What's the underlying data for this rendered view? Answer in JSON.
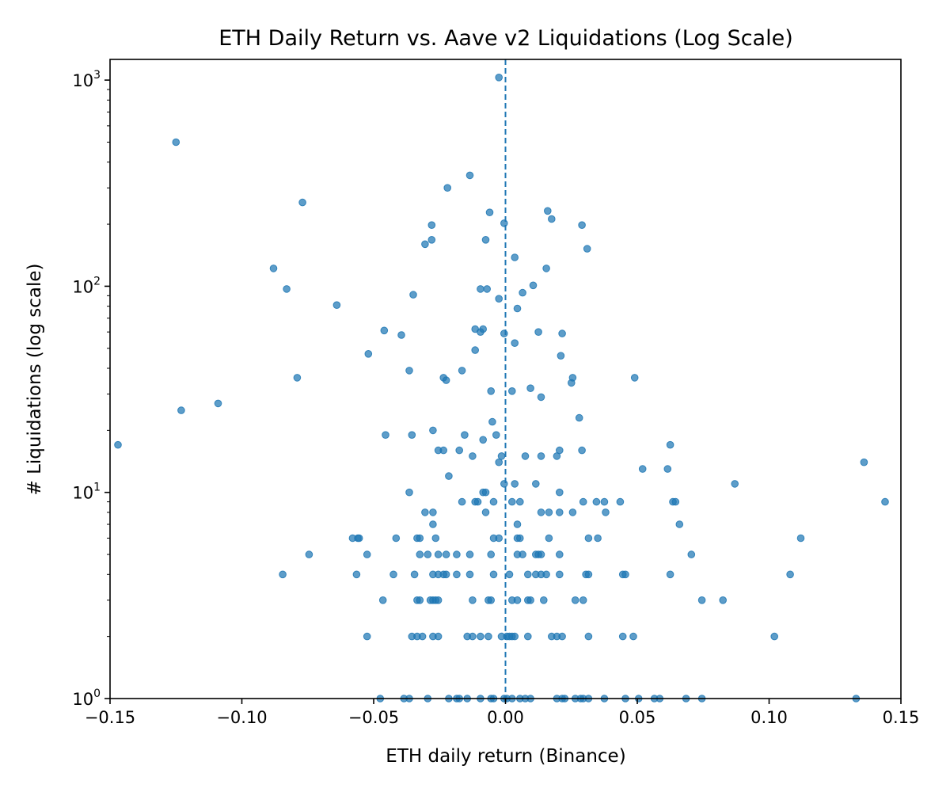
{
  "chart_data": {
    "type": "scatter",
    "title": "ETH Daily Return vs. Aave v2 Liquidations (Log Scale)",
    "xlabel": "ETH daily return (Binance)",
    "ylabel": "# Liquidations (log scale)",
    "xlim": [
      -0.15,
      0.15
    ],
    "ylim": [
      1,
      1260
    ],
    "y_scale": "log",
    "x_ticks": [
      "−0.15",
      "−0.10",
      "−0.05",
      "0.00",
      "0.05",
      "0.10",
      "0.15"
    ],
    "x_tick_values": [
      -0.15,
      -0.1,
      -0.05,
      0.0,
      0.05,
      0.1,
      0.15
    ],
    "y_ticks": [
      {
        "base": "10",
        "exp": "0",
        "value": 1
      },
      {
        "base": "10",
        "exp": "1",
        "value": 10
      },
      {
        "base": "10",
        "exp": "2",
        "value": 100
      },
      {
        "base": "10",
        "exp": "3",
        "value": 1000
      }
    ],
    "reference_line": {
      "x": 0.0,
      "style": "dashed",
      "color": "#1f77b4"
    },
    "color": "#1f77b4",
    "grid": false,
    "points": [
      [
        -0.0025,
        1030
      ],
      [
        -0.125,
        500
      ],
      [
        -0.077,
        255
      ],
      [
        -0.0135,
        345
      ],
      [
        -0.022,
        300
      ],
      [
        -0.006,
        228
      ],
      [
        -0.0005,
        202
      ],
      [
        -0.028,
        198
      ],
      [
        0.016,
        232
      ],
      [
        0.0175,
        212
      ],
      [
        0.029,
        198
      ],
      [
        -0.028,
        168
      ],
      [
        -0.0075,
        168
      ],
      [
        -0.0305,
        160
      ],
      [
        0.031,
        152
      ],
      [
        0.0035,
        138
      ],
      [
        0.0155,
        122
      ],
      [
        -0.088,
        122
      ],
      [
        -0.083,
        97
      ],
      [
        -0.0095,
        97
      ],
      [
        -0.007,
        97
      ],
      [
        0.0105,
        101
      ],
      [
        -0.035,
        91
      ],
      [
        0.0065,
        93
      ],
      [
        -0.0025,
        87
      ],
      [
        -0.064,
        81
      ],
      [
        0.0045,
        78
      ],
      [
        -0.0115,
        62
      ],
      [
        -0.0085,
        62
      ],
      [
        -0.046,
        61
      ],
      [
        -0.0095,
        60
      ],
      [
        -0.0005,
        59
      ],
      [
        0.0125,
        60
      ],
      [
        0.0215,
        59
      ],
      [
        -0.0395,
        58
      ],
      [
        0.0035,
        53
      ],
      [
        -0.0115,
        49
      ],
      [
        -0.052,
        47
      ],
      [
        0.021,
        46
      ],
      [
        -0.0365,
        39
      ],
      [
        -0.0165,
        39
      ],
      [
        -0.079,
        36
      ],
      [
        -0.0235,
        36
      ],
      [
        -0.0225,
        35
      ],
      [
        0.0255,
        36
      ],
      [
        0.049,
        36
      ],
      [
        0.025,
        34
      ],
      [
        0.0095,
        32
      ],
      [
        -0.0055,
        31
      ],
      [
        0.0025,
        31
      ],
      [
        0.0135,
        29
      ],
      [
        -0.123,
        25
      ],
      [
        -0.109,
        27
      ],
      [
        0.028,
        23
      ],
      [
        -0.005,
        22
      ],
      [
        -0.147,
        17
      ],
      [
        -0.0455,
        19
      ],
      [
        -0.0355,
        19
      ],
      [
        -0.0275,
        20
      ],
      [
        -0.0155,
        19
      ],
      [
        -0.0035,
        19
      ],
      [
        -0.0085,
        18
      ],
      [
        -0.0255,
        16
      ],
      [
        -0.0235,
        16
      ],
      [
        -0.0175,
        16
      ],
      [
        -0.0125,
        15
      ],
      [
        -0.0025,
        14
      ],
      [
        -0.0015,
        15
      ],
      [
        0.0075,
        15
      ],
      [
        0.0135,
        15
      ],
      [
        0.0205,
        16
      ],
      [
        0.0195,
        15
      ],
      [
        0.029,
        16
      ],
      [
        0.0625,
        17
      ],
      [
        0.136,
        14
      ],
      [
        0.052,
        13
      ],
      [
        0.0615,
        13
      ],
      [
        -0.0215,
        12
      ],
      [
        -0.0005,
        11
      ],
      [
        0.0035,
        11
      ],
      [
        0.0115,
        11
      ],
      [
        0.087,
        11
      ],
      [
        -0.0365,
        10
      ],
      [
        -0.0085,
        10
      ],
      [
        -0.0075,
        10
      ],
      [
        0.0205,
        10
      ],
      [
        -0.0165,
        9
      ],
      [
        -0.0115,
        9
      ],
      [
        -0.0105,
        9
      ],
      [
        -0.0045,
        9
      ],
      [
        0.0025,
        9
      ],
      [
        0.0055,
        9
      ],
      [
        0.0295,
        9
      ],
      [
        0.0345,
        9
      ],
      [
        0.0375,
        9
      ],
      [
        0.0435,
        9
      ],
      [
        0.0635,
        9
      ],
      [
        0.0645,
        9
      ],
      [
        0.144,
        9
      ],
      [
        -0.0305,
        8
      ],
      [
        -0.0275,
        8
      ],
      [
        -0.0075,
        8
      ],
      [
        0.0135,
        8
      ],
      [
        0.0165,
        8
      ],
      [
        0.0205,
        8
      ],
      [
        0.0255,
        8
      ],
      [
        0.038,
        8
      ],
      [
        -0.0275,
        7
      ],
      [
        0.0045,
        7
      ],
      [
        0.066,
        7
      ],
      [
        -0.058,
        6
      ],
      [
        -0.056,
        6
      ],
      [
        -0.0555,
        6
      ],
      [
        -0.0415,
        6
      ],
      [
        -0.0335,
        6
      ],
      [
        -0.0325,
        6
      ],
      [
        -0.0265,
        6
      ],
      [
        -0.0045,
        6
      ],
      [
        -0.0025,
        6
      ],
      [
        0.0045,
        6
      ],
      [
        0.0055,
        6
      ],
      [
        0.0165,
        6
      ],
      [
        0.0315,
        6
      ],
      [
        0.035,
        6
      ],
      [
        0.112,
        6
      ],
      [
        -0.0745,
        5
      ],
      [
        -0.0525,
        5
      ],
      [
        -0.0325,
        5
      ],
      [
        -0.0295,
        5
      ],
      [
        -0.0255,
        5
      ],
      [
        -0.0225,
        5
      ],
      [
        -0.0185,
        5
      ],
      [
        -0.0135,
        5
      ],
      [
        -0.0055,
        5
      ],
      [
        0.0045,
        5
      ],
      [
        0.0065,
        5
      ],
      [
        0.0115,
        5
      ],
      [
        0.0125,
        5
      ],
      [
        0.0135,
        5
      ],
      [
        0.0205,
        5
      ],
      [
        0.0705,
        5
      ],
      [
        -0.0845,
        4
      ],
      [
        -0.0565,
        4
      ],
      [
        -0.0425,
        4
      ],
      [
        -0.0345,
        4
      ],
      [
        -0.0275,
        4
      ],
      [
        -0.0255,
        4
      ],
      [
        -0.0235,
        4
      ],
      [
        -0.0225,
        4
      ],
      [
        -0.0185,
        4
      ],
      [
        -0.0135,
        4
      ],
      [
        -0.0045,
        4
      ],
      [
        0.0015,
        4
      ],
      [
        0.0085,
        4
      ],
      [
        0.0115,
        4
      ],
      [
        0.0135,
        4
      ],
      [
        0.0155,
        4
      ],
      [
        0.0205,
        4
      ],
      [
        0.0305,
        4
      ],
      [
        0.0315,
        4
      ],
      [
        0.0445,
        4
      ],
      [
        0.0455,
        4
      ],
      [
        0.0625,
        4
      ],
      [
        0.108,
        4
      ],
      [
        -0.0465,
        3
      ],
      [
        -0.0335,
        3
      ],
      [
        -0.0325,
        3
      ],
      [
        -0.0285,
        3
      ],
      [
        -0.0275,
        3
      ],
      [
        -0.0265,
        3
      ],
      [
        -0.0255,
        3
      ],
      [
        -0.0125,
        3
      ],
      [
        -0.0065,
        3
      ],
      [
        -0.0055,
        3
      ],
      [
        0.0025,
        3
      ],
      [
        0.0045,
        3
      ],
      [
        0.0085,
        3
      ],
      [
        0.0095,
        3
      ],
      [
        0.0145,
        3
      ],
      [
        0.0265,
        3
      ],
      [
        0.0295,
        3
      ],
      [
        0.0745,
        3
      ],
      [
        0.0825,
        3
      ],
      [
        -0.0525,
        2
      ],
      [
        -0.0355,
        2
      ],
      [
        -0.0335,
        2
      ],
      [
        -0.0315,
        2
      ],
      [
        -0.0275,
        2
      ],
      [
        -0.0255,
        2
      ],
      [
        -0.0145,
        2
      ],
      [
        -0.0125,
        2
      ],
      [
        -0.0095,
        2
      ],
      [
        -0.0065,
        2
      ],
      [
        -0.0015,
        2
      ],
      [
        0.0005,
        2
      ],
      [
        0.0015,
        2
      ],
      [
        0.0025,
        2
      ],
      [
        0.0035,
        2
      ],
      [
        0.0085,
        2
      ],
      [
        0.0175,
        2
      ],
      [
        0.0195,
        2
      ],
      [
        0.0215,
        2
      ],
      [
        0.0315,
        2
      ],
      [
        0.0445,
        2
      ],
      [
        0.0485,
        2
      ],
      [
        0.102,
        2
      ],
      [
        -0.0475,
        1
      ],
      [
        -0.0385,
        1
      ],
      [
        -0.0365,
        1
      ],
      [
        -0.0295,
        1
      ],
      [
        -0.0215,
        1
      ],
      [
        -0.0185,
        1
      ],
      [
        -0.0175,
        1
      ],
      [
        -0.0145,
        1
      ],
      [
        -0.0095,
        1
      ],
      [
        -0.0055,
        1
      ],
      [
        -0.0045,
        1
      ],
      [
        -0.0005,
        1
      ],
      [
        0.0005,
        1
      ],
      [
        0.0025,
        1
      ],
      [
        0.0055,
        1
      ],
      [
        0.0075,
        1
      ],
      [
        0.0095,
        1
      ],
      [
        0.0195,
        1
      ],
      [
        0.0215,
        1
      ],
      [
        0.0225,
        1
      ],
      [
        0.0265,
        1
      ],
      [
        0.0285,
        1
      ],
      [
        0.0295,
        1
      ],
      [
        0.0315,
        1
      ],
      [
        0.0375,
        1
      ],
      [
        0.0455,
        1
      ],
      [
        0.0505,
        1
      ],
      [
        0.0565,
        1
      ],
      [
        0.0585,
        1
      ],
      [
        0.0685,
        1
      ],
      [
        0.0745,
        1
      ],
      [
        0.133,
        1
      ]
    ]
  }
}
